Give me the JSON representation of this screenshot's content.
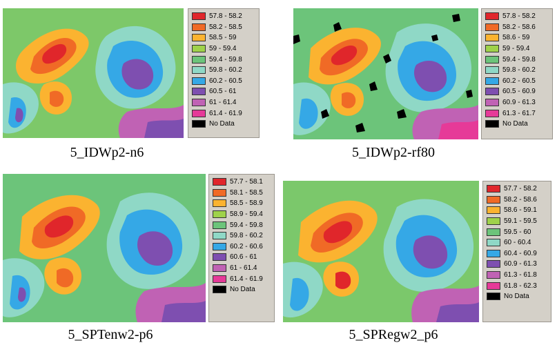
{
  "panels": [
    {
      "caption": "5_IDWp2-n6",
      "legend": [
        {
          "label": "57.8 - 58.2",
          "color": "#e0262b"
        },
        {
          "label": "58.2 - 58.5",
          "color": "#f06a26"
        },
        {
          "label": "58.5 - 59",
          "color": "#fbb330"
        },
        {
          "label": "59 - 59.4",
          "color": "#9fd24a"
        },
        {
          "label": "59.4 - 59.8",
          "color": "#6cc47a"
        },
        {
          "label": "59.8 - 60.2",
          "color": "#8fd8c6"
        },
        {
          "label": "60.2 - 60.5",
          "color": "#35a8e6"
        },
        {
          "label": "60.5 - 61",
          "color": "#7e4fb0"
        },
        {
          "label": "61 - 61.4",
          "color": "#c062b4"
        },
        {
          "label": "61.4 - 61.9",
          "color": "#e63a98"
        },
        {
          "label": "No Data",
          "color": "#000000"
        }
      ]
    },
    {
      "caption": "5_IDWp2-rf80",
      "legend": [
        {
          "label": "57.8 - 58.2",
          "color": "#e0262b"
        },
        {
          "label": "58.2 - 58.6",
          "color": "#f06a26"
        },
        {
          "label": "58.6 - 59",
          "color": "#fbb330"
        },
        {
          "label": "59 - 59.4",
          "color": "#9fd24a"
        },
        {
          "label": "59.4 - 59.8",
          "color": "#6cc47a"
        },
        {
          "label": "59.8 - 60.2",
          "color": "#8fd8c6"
        },
        {
          "label": "60.2 - 60.5",
          "color": "#35a8e6"
        },
        {
          "label": "60.5 - 60.9",
          "color": "#7e4fb0"
        },
        {
          "label": "60.9 - 61.3",
          "color": "#c062b4"
        },
        {
          "label": "61.3 - 61.7",
          "color": "#e63a98"
        },
        {
          "label": "No Data",
          "color": "#000000"
        }
      ]
    },
    {
      "caption": "5_SPTenw2-p6",
      "legend": [
        {
          "label": "57.7 - 58.1",
          "color": "#e0262b"
        },
        {
          "label": "58.1 - 58.5",
          "color": "#f06a26"
        },
        {
          "label": "58.5 - 58.9",
          "color": "#fbb330"
        },
        {
          "label": "58.9 - 59.4",
          "color": "#9fd24a"
        },
        {
          "label": "59.4 - 59.8",
          "color": "#6cc47a"
        },
        {
          "label": "59.8 - 60.2",
          "color": "#8fd8c6"
        },
        {
          "label": "60.2 - 60.6",
          "color": "#35a8e6"
        },
        {
          "label": "60.6 - 61",
          "color": "#7e4fb0"
        },
        {
          "label": "61 - 61.4",
          "color": "#c062b4"
        },
        {
          "label": "61.4 - 61.9",
          "color": "#e63a98"
        },
        {
          "label": "No Data",
          "color": "#000000"
        }
      ]
    },
    {
      "caption": "5_SPRegw2_p6",
      "legend": [
        {
          "label": "57.7 - 58.2",
          "color": "#e0262b"
        },
        {
          "label": "58.2 - 58.6",
          "color": "#f06a26"
        },
        {
          "label": "58.6 - 59.1",
          "color": "#fbb330"
        },
        {
          "label": "59.1 - 59.5",
          "color": "#9fd24a"
        },
        {
          "label": "59.5 - 60",
          "color": "#6cc47a"
        },
        {
          "label": "60 - 60.4",
          "color": "#8fd8c6"
        },
        {
          "label": "60.4 - 60.9",
          "color": "#35a8e6"
        },
        {
          "label": "60.9 - 61.3",
          "color": "#7e4fb0"
        },
        {
          "label": "61.3 - 61.8",
          "color": "#c062b4"
        },
        {
          "label": "61.8 - 62.3",
          "color": "#e63a98"
        },
        {
          "label": "No Data",
          "color": "#000000"
        }
      ]
    }
  ]
}
